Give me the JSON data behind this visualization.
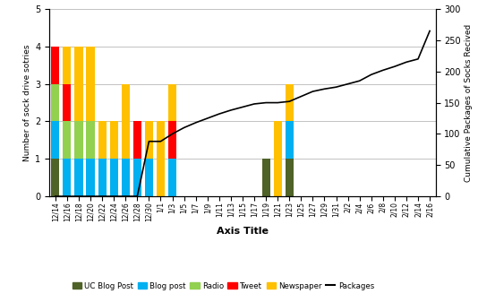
{
  "dates": [
    "12/14",
    "12/16",
    "12/18",
    "12/20",
    "12/22",
    "12/24",
    "12/26",
    "12/28",
    "12/30",
    "1/1",
    "1/3",
    "1/5",
    "1/7",
    "1/9",
    "1/11",
    "1/13",
    "1/15",
    "1/17",
    "1/19",
    "1/21",
    "1/23",
    "1/25",
    "1/27",
    "1/29",
    "1/31",
    "2/2",
    "2/4",
    "2/6",
    "2/8",
    "2/10",
    "2/12",
    "2/14",
    "2/16"
  ],
  "uc_blog_post": [
    1,
    0,
    0,
    0,
    0,
    0,
    0,
    0,
    0,
    0,
    0,
    0,
    0,
    0,
    0,
    0,
    0,
    0,
    1,
    0,
    1,
    0,
    0,
    0,
    0,
    0,
    0,
    0,
    0,
    0,
    0,
    0,
    0
  ],
  "blog_post": [
    1,
    1,
    1,
    1,
    1,
    1,
    1,
    1,
    1,
    0,
    1,
    0,
    0,
    0,
    0,
    0,
    0,
    0,
    0,
    0,
    1,
    0,
    0,
    0,
    0,
    0,
    0,
    0,
    0,
    0,
    0,
    0,
    0
  ],
  "radio": [
    1,
    1,
    1,
    1,
    0,
    0,
    0,
    0,
    0,
    0,
    0,
    0,
    0,
    0,
    0,
    0,
    0,
    0,
    0,
    0,
    0,
    0,
    0,
    0,
    0,
    0,
    0,
    0,
    0,
    0,
    0,
    0,
    0
  ],
  "tweet": [
    1,
    1,
    0,
    0,
    0,
    0,
    0,
    1,
    0,
    0,
    1,
    0,
    0,
    0,
    0,
    0,
    0,
    0,
    0,
    0,
    0,
    0,
    0,
    0,
    0,
    0,
    0,
    0,
    0,
    0,
    0,
    0,
    0
  ],
  "newspaper": [
    0,
    1,
    2,
    2,
    1,
    1,
    2,
    0,
    1,
    2,
    1,
    0,
    0,
    0,
    0,
    0,
    0,
    0,
    0,
    2,
    1,
    0,
    0,
    0,
    0,
    0,
    0,
    0,
    0,
    0,
    0,
    0,
    0
  ],
  "packages": [
    0,
    0,
    0,
    0,
    0,
    0,
    0,
    0,
    88,
    88,
    100,
    110,
    118,
    125,
    132,
    138,
    143,
    148,
    150,
    150,
    152,
    160,
    168,
    172,
    175,
    180,
    185,
    195,
    202,
    208,
    215,
    220,
    265
  ],
  "ylim_left": [
    0,
    5
  ],
  "ylim_right": [
    0,
    300
  ],
  "left_yticks": [
    0,
    1,
    2,
    3,
    4,
    5
  ],
  "right_yticks": [
    0,
    50,
    100,
    150,
    200,
    250,
    300
  ],
  "colors": {
    "uc_blog_post": "#4F6228",
    "blog_post": "#00B0F0",
    "radio": "#92D050",
    "tweet": "#FF0000",
    "newspaper": "#FFC000",
    "packages": "#000000"
  },
  "ylabel_left": "Number of sock drive sotries",
  "ylabel_right": "Cumulative Packages of Socks Recived",
  "xlabel": "Axis Title",
  "legend_labels": [
    "UC Blog Post",
    "Blog post",
    "Radio",
    "Tweet",
    "Newspaper",
    "Packages"
  ]
}
